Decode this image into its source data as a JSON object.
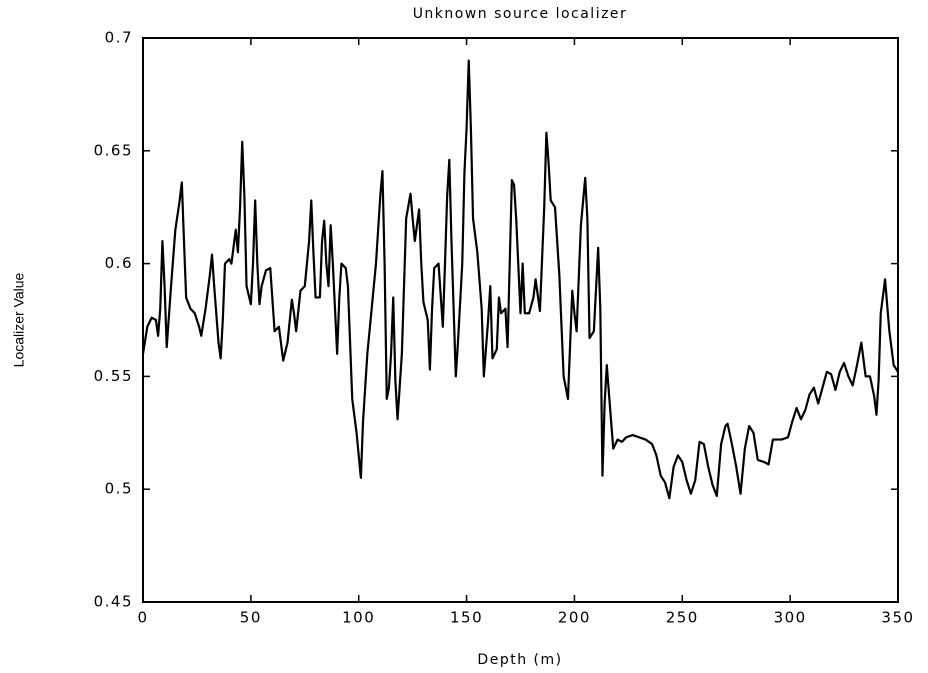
{
  "chart_data": {
    "type": "line",
    "title": "Unknown source localizer",
    "x_label": "Depth (m)",
    "y_label": "Localizer Value",
    "color": "#000000",
    "grid": false,
    "xlim": [
      0,
      350
    ],
    "xticks": [
      0,
      50,
      100,
      150,
      200,
      250,
      300,
      350
    ],
    "ylim": [
      0.45,
      0.7
    ],
    "yticks": [
      0.45,
      0.5,
      0.55,
      0.6,
      0.65,
      0.7
    ],
    "x": [
      0,
      2,
      4,
      6,
      7,
      8,
      9,
      10,
      11,
      13,
      15,
      17,
      18,
      19,
      20,
      22,
      24,
      26,
      27,
      29,
      31,
      32,
      33,
      35,
      36,
      37,
      38,
      40,
      41,
      43,
      44,
      45,
      46,
      47,
      48,
      50,
      51,
      52,
      53,
      54,
      55,
      57,
      59,
      61,
      63,
      65,
      67,
      69,
      70,
      71,
      73,
      75,
      77,
      78,
      79,
      80,
      82,
      83,
      84,
      85,
      86,
      87,
      88,
      89,
      90,
      91,
      92,
      94,
      95,
      97,
      99,
      101,
      102,
      104,
      106,
      108,
      110,
      111,
      112,
      113,
      114,
      115,
      116,
      117,
      118,
      120,
      122,
      124,
      125,
      126,
      128,
      129,
      130,
      132,
      133,
      134,
      135,
      137,
      139,
      140,
      141,
      142,
      143,
      144,
      145,
      146,
      148,
      149,
      150,
      151,
      152,
      153,
      155,
      157,
      158,
      160,
      161,
      162,
      164,
      165,
      166,
      168,
      169,
      170,
      171,
      172,
      173,
      175,
      176,
      177,
      179,
      181,
      182,
      184,
      186,
      187,
      188,
      189,
      191,
      193,
      195,
      197,
      199,
      200,
      201,
      203,
      205,
      206,
      207,
      209,
      211,
      212,
      213,
      214,
      215,
      217,
      218,
      220,
      222,
      224,
      227,
      230,
      233,
      236,
      238,
      240,
      242,
      244,
      246,
      248,
      250,
      252,
      254,
      256,
      258,
      260,
      262,
      264,
      266,
      268,
      270,
      271,
      273,
      275,
      277,
      279,
      281,
      283,
      285,
      288,
      290,
      292,
      296,
      299,
      301,
      303,
      305,
      307,
      309,
      311,
      313,
      315,
      317,
      319,
      321,
      323,
      325,
      327,
      329,
      331,
      333,
      335,
      337,
      339,
      340,
      341,
      342,
      344,
      346,
      348,
      350
    ],
    "values": [
      0.56,
      0.572,
      0.576,
      0.575,
      0.568,
      0.58,
      0.61,
      0.59,
      0.563,
      0.59,
      0.615,
      0.628,
      0.636,
      0.61,
      0.585,
      0.58,
      0.578,
      0.572,
      0.568,
      0.58,
      0.595,
      0.604,
      0.59,
      0.565,
      0.558,
      0.575,
      0.6,
      0.602,
      0.6,
      0.615,
      0.605,
      0.625,
      0.654,
      0.63,
      0.59,
      0.582,
      0.6,
      0.628,
      0.6,
      0.582,
      0.59,
      0.597,
      0.598,
      0.57,
      0.572,
      0.557,
      0.565,
      0.584,
      0.578,
      0.57,
      0.588,
      0.59,
      0.61,
      0.628,
      0.605,
      0.585,
      0.585,
      0.61,
      0.619,
      0.6,
      0.59,
      0.617,
      0.6,
      0.58,
      0.56,
      0.585,
      0.6,
      0.598,
      0.59,
      0.54,
      0.525,
      0.505,
      0.53,
      0.56,
      0.58,
      0.6,
      0.63,
      0.641,
      0.6,
      0.54,
      0.545,
      0.56,
      0.585,
      0.548,
      0.531,
      0.56,
      0.62,
      0.631,
      0.62,
      0.61,
      0.624,
      0.6,
      0.583,
      0.575,
      0.553,
      0.58,
      0.598,
      0.6,
      0.572,
      0.6,
      0.63,
      0.646,
      0.61,
      0.58,
      0.55,
      0.565,
      0.6,
      0.64,
      0.66,
      0.69,
      0.66,
      0.62,
      0.605,
      0.58,
      0.55,
      0.575,
      0.59,
      0.558,
      0.562,
      0.585,
      0.578,
      0.58,
      0.563,
      0.6,
      0.637,
      0.635,
      0.62,
      0.578,
      0.6,
      0.578,
      0.578,
      0.585,
      0.593,
      0.579,
      0.625,
      0.658,
      0.645,
      0.628,
      0.625,
      0.595,
      0.55,
      0.54,
      0.588,
      0.578,
      0.57,
      0.617,
      0.638,
      0.62,
      0.567,
      0.57,
      0.607,
      0.58,
      0.506,
      0.538,
      0.555,
      0.53,
      0.518,
      0.522,
      0.521,
      0.523,
      0.524,
      0.523,
      0.522,
      0.52,
      0.515,
      0.506,
      0.503,
      0.496,
      0.51,
      0.515,
      0.512,
      0.504,
      0.498,
      0.504,
      0.521,
      0.52,
      0.51,
      0.502,
      0.497,
      0.52,
      0.528,
      0.529,
      0.52,
      0.51,
      0.498,
      0.518,
      0.528,
      0.525,
      0.513,
      0.512,
      0.511,
      0.522,
      0.522,
      0.523,
      0.53,
      0.536,
      0.531,
      0.535,
      0.542,
      0.545,
      0.538,
      0.545,
      0.552,
      0.551,
      0.544,
      0.552,
      0.556,
      0.55,
      0.546,
      0.555,
      0.565,
      0.55,
      0.55,
      0.541,
      0.533,
      0.548,
      0.578,
      0.593,
      0.57,
      0.555,
      0.552
    ]
  }
}
